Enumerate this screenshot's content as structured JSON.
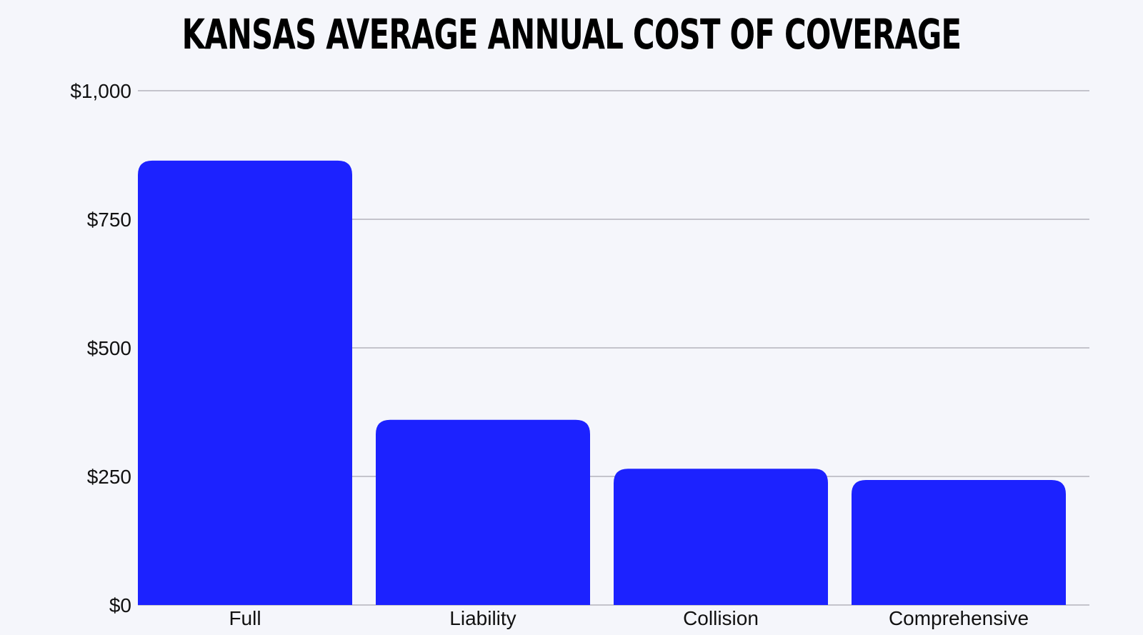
{
  "chart_data": {
    "type": "bar",
    "title": "KANSAS AVERAGE ANNUAL COST OF COVERAGE",
    "categories": [
      "Full",
      "Liability",
      "Collision",
      "Comprehensive"
    ],
    "values": [
      864,
      360,
      265,
      243
    ],
    "ylim": [
      0,
      1000
    ],
    "yticks": [
      0,
      250,
      500,
      750,
      1000
    ],
    "ytick_labels": [
      "$0",
      "$250",
      "$500",
      "$750",
      "$1,000"
    ],
    "xlabel": "",
    "ylabel": "",
    "grid": true,
    "bar_color": "#1c22ff",
    "grid_color": "#c4c4cc",
    "background_color": "#f5f6fb"
  }
}
